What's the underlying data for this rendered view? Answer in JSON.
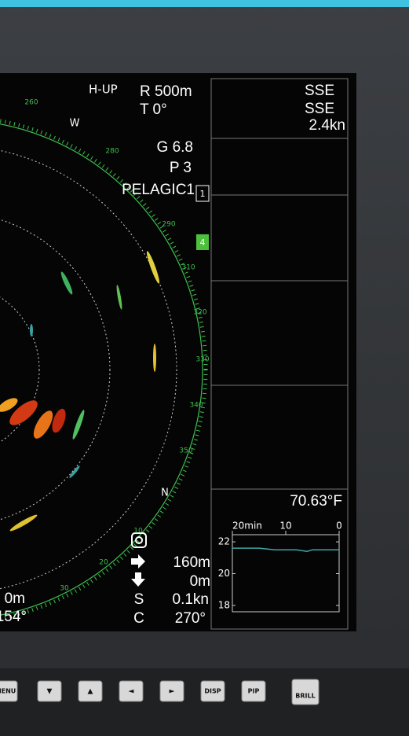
{
  "radar": {
    "mode": "H-UP",
    "range": "R 500m",
    "tilt": "T 0°",
    "gain": "G 6.8",
    "pulse": "P 3",
    "mode_name": "PELAGIC1",
    "box1": "1",
    "box4": "4",
    "bearings": [
      "260",
      "W",
      "280",
      "290",
      "310",
      "320",
      "330",
      "340",
      "350",
      "N",
      "10",
      "20",
      "30"
    ],
    "depth_left": "0m",
    "bearing_left": "154°",
    "arrow_right": "160m",
    "arrow_down": "0m",
    "speed_label": "S",
    "speed": "0.1kn",
    "course_label": "C",
    "course": "270°"
  },
  "current": {
    "dir1": "SSE",
    "dir2": "SSE",
    "speed": "2.4kn"
  },
  "temperature": "70.63°F",
  "temp_graph": {
    "x": [
      20,
      15,
      12,
      8,
      6,
      5,
      0
    ],
    "values": [
      21.6,
      21.6,
      21.5,
      21.5,
      21.4,
      21.5,
      21.5
    ],
    "color": "#3fa7a7",
    "xlim": [
      20,
      0
    ],
    "xticks": [
      {
        "value": 20,
        "label": "20min"
      },
      10,
      0
    ],
    "ylim": [
      17.6,
      22.45
    ],
    "yticks": [
      22,
      20,
      18
    ]
  },
  "buttons": [
    "MENU",
    "▼",
    "▲",
    "◄",
    "►",
    "DISP",
    "PIP",
    "BRILL"
  ]
}
